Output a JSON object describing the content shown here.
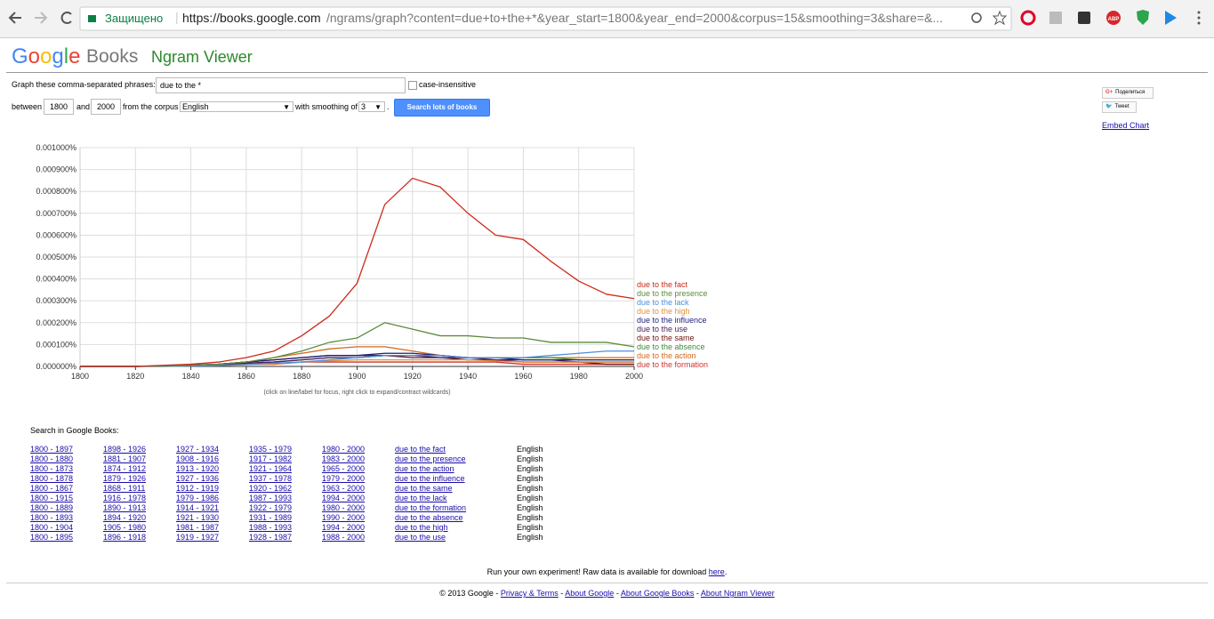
{
  "browser": {
    "secure_label": "Защищено",
    "url_host": "https://books.google.com",
    "url_path": "/ngrams/graph?content=due+to+the+*&year_start=1800&year_end=2000&corpus=15&smoothing=3&share=&...",
    "extension_label": "ABP"
  },
  "header": {
    "logo_google": "Google",
    "logo_books": "Books",
    "app_name": "Ngram Viewer"
  },
  "form": {
    "phrases_label": "Graph these comma-separated phrases:",
    "phrases_value": "due to the *",
    "case_label": "case-insensitive",
    "between_label": "between",
    "year_start": "1800",
    "and_label": "and",
    "year_end": "2000",
    "corpus_label": "from the corpus",
    "corpus_value": "English",
    "smoothing_label": "with smoothing of",
    "smoothing_value": "3",
    "period": ".",
    "button": "Search lots of books"
  },
  "share": {
    "gplus": "Поделиться",
    "tweet": "Tweet",
    "embed": "Embed Chart"
  },
  "chart_data": {
    "type": "line",
    "x": [
      1800,
      1810,
      1820,
      1830,
      1840,
      1850,
      1860,
      1870,
      1880,
      1890,
      1900,
      1910,
      1920,
      1930,
      1940,
      1950,
      1960,
      1970,
      1980,
      1990,
      2000
    ],
    "xlim": [
      1800,
      2000
    ],
    "xticks": [
      1800,
      1820,
      1840,
      1860,
      1880,
      1900,
      1920,
      1940,
      1960,
      1980,
      2000
    ],
    "ylim": [
      0,
      0.001
    ],
    "yticks": [
      {
        "value": 0,
        "label": "0.000000%"
      },
      {
        "value": 0.0001,
        "label": "0.000100%"
      },
      {
        "value": 0.0002,
        "label": "0.000200%"
      },
      {
        "value": 0.0003,
        "label": "0.000300%"
      },
      {
        "value": 0.0004,
        "label": "0.000400%"
      },
      {
        "value": 0.0005,
        "label": "0.000500%"
      },
      {
        "value": 0.0006,
        "label": "0.000600%"
      },
      {
        "value": 0.0007,
        "label": "0.000700%"
      },
      {
        "value": 0.0008,
        "label": "0.000800%"
      },
      {
        "value": 0.0009,
        "label": "0.000900%"
      },
      {
        "value": 0.001,
        "label": "0.001000%"
      }
    ],
    "grid": true,
    "note": "(click on line/label for focus, right click to expand/contract wildcards)",
    "series": [
      {
        "name": "due to the fact",
        "color": "#cc2a1a",
        "values": [
          0,
          0,
          0,
          5e-06,
          1e-05,
          2e-05,
          4e-05,
          7e-05,
          0.00014,
          0.00023,
          0.00038,
          0.00074,
          0.00086,
          0.00082,
          0.0007,
          0.0006,
          0.00058,
          0.00048,
          0.00039,
          0.00033,
          0.00031
        ]
      },
      {
        "name": "due to the presence",
        "color": "#5b8c3c",
        "values": [
          0,
          0,
          0,
          2e-06,
          5e-06,
          1e-05,
          2e-05,
          4e-05,
          7e-05,
          0.00011,
          0.00013,
          0.0002,
          0.00017,
          0.00014,
          0.00014,
          0.00013,
          0.00013,
          0.00011,
          0.00011,
          0.00011,
          9e-05
        ]
      },
      {
        "name": "due to the lack",
        "color": "#4a90d9",
        "values": [
          0,
          0,
          0,
          0,
          2e-06,
          4e-06,
          8e-06,
          1.5e-05,
          2e-05,
          3e-05,
          4e-05,
          5e-05,
          5e-05,
          5e-05,
          4e-05,
          4e-05,
          4e-05,
          5e-05,
          6e-05,
          7e-05,
          7e-05
        ]
      },
      {
        "name": "due to the high",
        "color": "#e69138",
        "values": [
          0,
          0,
          0,
          0,
          2e-06,
          4e-06,
          8e-06,
          1.2e-05,
          2e-05,
          2.5e-05,
          3e-05,
          3e-05,
          3e-05,
          3e-05,
          3e-05,
          2.5e-05,
          2e-05,
          2e-05,
          2e-05,
          2e-05,
          2e-05
        ]
      },
      {
        "name": "due to the influence",
        "color": "#1f1f7a",
        "values": [
          0,
          0,
          0,
          2e-06,
          5e-06,
          1e-05,
          2e-05,
          3e-05,
          4e-05,
          5e-05,
          5e-05,
          6e-05,
          6e-05,
          5e-05,
          4e-05,
          4e-05,
          3e-05,
          3e-05,
          3e-05,
          3e-05,
          3e-05
        ]
      },
      {
        "name": "due to the use",
        "color": "#4b1d5e",
        "values": [
          0,
          0,
          0,
          2e-06,
          5e-06,
          1e-05,
          1.5e-05,
          2e-05,
          3e-05,
          4e-05,
          4e-05,
          5e-05,
          5e-05,
          4e-05,
          4e-05,
          3e-05,
          3e-05,
          3e-05,
          2e-05,
          2e-05,
          2e-05
        ]
      },
      {
        "name": "due to the same",
        "color": "#6e1414",
        "values": [
          0,
          0,
          0,
          3e-06,
          6e-06,
          1e-05,
          2e-05,
          3e-05,
          4e-05,
          5e-05,
          5e-05,
          5e-05,
          4e-05,
          4e-05,
          3e-05,
          3e-05,
          2e-05,
          2e-05,
          2e-05,
          1e-05,
          1e-05
        ]
      },
      {
        "name": "due to the absence",
        "color": "#3c8c3c",
        "values": [
          0,
          0,
          0,
          2e-06,
          4e-06,
          8e-06,
          1.5e-05,
          2e-05,
          3e-05,
          4e-05,
          4e-05,
          5e-05,
          5e-05,
          5e-05,
          4e-05,
          4e-05,
          4e-05,
          4e-05,
          3e-05,
          3e-05,
          3e-05
        ]
      },
      {
        "name": "due to the action",
        "color": "#d2691e",
        "values": [
          0,
          0,
          0,
          3e-06,
          6e-06,
          1e-05,
          2e-05,
          4e-05,
          6e-05,
          8e-05,
          9e-05,
          9e-05,
          7e-05,
          5e-05,
          4e-05,
          4e-05,
          4e-05,
          4e-05,
          4e-05,
          4e-05,
          4e-05
        ]
      },
      {
        "name": "due to the formation",
        "color": "#cc3333",
        "values": [
          0,
          0,
          0,
          2e-06,
          4e-06,
          6e-06,
          1e-05,
          1e-05,
          2e-05,
          2e-05,
          2e-05,
          2e-05,
          2e-05,
          2e-05,
          2e-05,
          2e-05,
          1e-05,
          1e-05,
          1e-05,
          1e-05,
          1e-05
        ]
      }
    ]
  },
  "search": {
    "heading": "Search in Google Books:",
    "rows": [
      [
        "1800 - 1897",
        "1898 - 1926",
        "1927 - 1934",
        "1935 - 1979",
        "1980 - 2000",
        "due to the fact",
        "English"
      ],
      [
        "1800 - 1880",
        "1881 - 1907",
        "1908 - 1916",
        "1917 - 1982",
        "1983 - 2000",
        "due to the presence",
        "English"
      ],
      [
        "1800 - 1873",
        "1874 - 1912",
        "1913 - 1920",
        "1921 - 1964",
        "1965 - 2000",
        "due to the action",
        "English"
      ],
      [
        "1800 - 1878",
        "1879 - 1926",
        "1927 - 1936",
        "1937 - 1978",
        "1979 - 2000",
        "due to the influence",
        "English"
      ],
      [
        "1800 - 1867",
        "1868 - 1911",
        "1912 - 1919",
        "1920 - 1962",
        "1963 - 2000",
        "due to the same",
        "English"
      ],
      [
        "1800 - 1915",
        "1916 - 1978",
        "1979 - 1986",
        "1987 - 1993",
        "1994 - 2000",
        "due to the lack",
        "English"
      ],
      [
        "1800 - 1889",
        "1890 - 1913",
        "1914 - 1921",
        "1922 - 1979",
        "1980 - 2000",
        "due to the formation",
        "English"
      ],
      [
        "1800 - 1893",
        "1894 - 1920",
        "1921 - 1930",
        "1931 - 1989",
        "1990 - 2000",
        "due to the absence",
        "English"
      ],
      [
        "1800 - 1904",
        "1905 - 1980",
        "1981 - 1987",
        "1988 - 1993",
        "1994 - 2000",
        "due to the high",
        "English"
      ],
      [
        "1800 - 1895",
        "1896 - 1918",
        "1919 - 1927",
        "1928 - 1987",
        "1988 - 2000",
        "due to the use",
        "English"
      ]
    ]
  },
  "raw": {
    "text": "Run your own experiment! Raw data is available for download ",
    "link": "here",
    "end": "."
  },
  "footer": {
    "copyright": "© 2013 Google",
    "separator": " - ",
    "links": [
      "Privacy & Terms",
      "About Google",
      "About Google Books",
      "About Ngram Viewer"
    ]
  }
}
